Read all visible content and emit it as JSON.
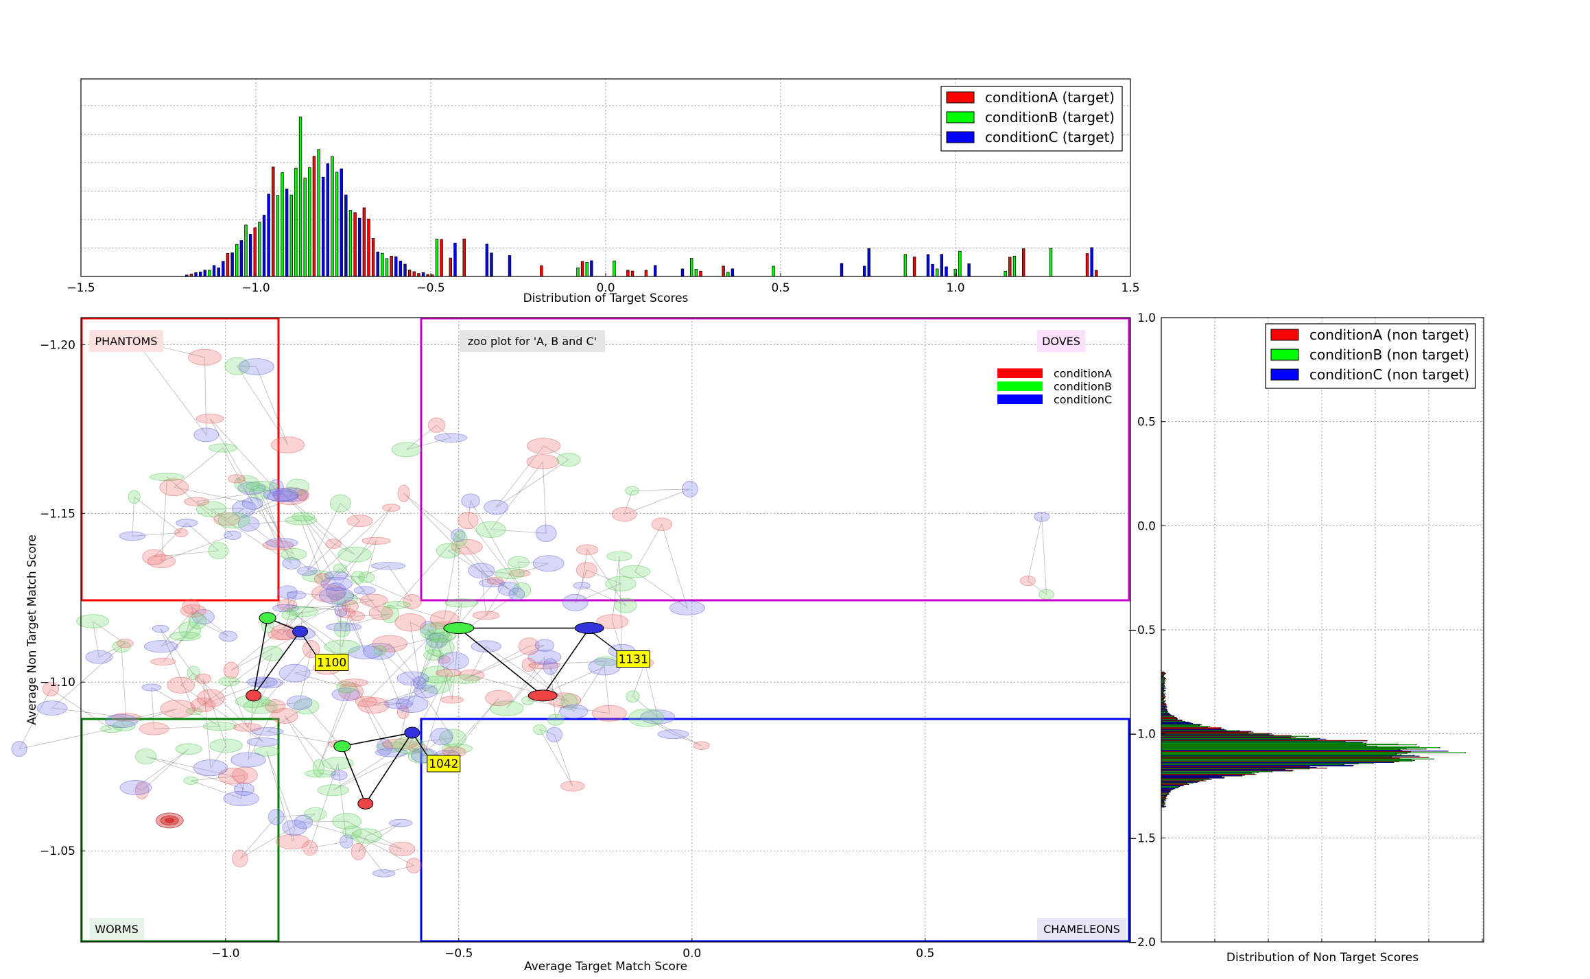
{
  "chart_data": [
    {
      "id": "top",
      "type": "bar",
      "xlabel": "Distribution of Target Scores",
      "xlim": [
        -1.5,
        1.5
      ],
      "x_ticks": [
        "−1.5",
        "−1.0",
        "−0.5",
        "0.0",
        "0.5",
        "1.0",
        "1.5"
      ],
      "grid": true,
      "legend_position": "top-right",
      "series": [
        {
          "name": "conditionA (target)",
          "color": "#ff0000"
        },
        {
          "name": "conditionB (target)",
          "color": "#00ff00"
        },
        {
          "name": "conditionC (target)",
          "color": "#0000ff"
        }
      ]
    },
    {
      "id": "zoo",
      "type": "scatter",
      "xlabel": "Average Target Match Score",
      "ylabel": "Average Non Target Match Score",
      "xlim": [
        -1.31,
        0.94
      ],
      "ylim": [
        -1.208,
        -1.023
      ],
      "y_inverted": true,
      "x_ticks": [
        "−1.0",
        "−0.5",
        "0.0",
        "0.5"
      ],
      "y_ticks": [
        "−1.20",
        "−1.15",
        "−1.10",
        "−1.05"
      ],
      "grid": true,
      "annotation": "zoo plot for 'A, B and C'",
      "regions": [
        {
          "label": "PHANTOMS",
          "color": "#ff0000",
          "bg": "#fde0e0"
        },
        {
          "label": "DOVES",
          "color": "#cc00cc",
          "bg": "#fbe0fb"
        },
        {
          "label": "WORMS",
          "color": "#008000",
          "bg": "#e6f2e6"
        },
        {
          "label": "CHAMELEONS",
          "color": "#0000ff",
          "bg": "#e6e6f7"
        }
      ],
      "region_bounds": {
        "x_low": -0.885,
        "x_high": -0.58,
        "y_low": -1.125,
        "y_high": -1.09
      },
      "legend": [
        {
          "name": "conditionA",
          "color": "#ff0000"
        },
        {
          "name": "conditionB",
          "color": "#00ff00"
        },
        {
          "name": "conditionC",
          "color": "#0000ff"
        }
      ],
      "highlighted": [
        {
          "label": "1100",
          "points": [
            {
              "series": "conditionA",
              "x": -0.94,
              "y": -1.096
            },
            {
              "series": "conditionB",
              "x": -0.91,
              "y": -1.119
            },
            {
              "series": "conditionC",
              "x": -0.84,
              "y": -1.115
            }
          ]
        },
        {
          "label": "1131",
          "points": [
            {
              "series": "conditionA",
              "x": -0.32,
              "y": -1.096
            },
            {
              "series": "conditionB",
              "x": -0.5,
              "y": -1.116
            },
            {
              "series": "conditionC",
              "x": -0.22,
              "y": -1.116
            }
          ]
        },
        {
          "label": "1042",
          "points": [
            {
              "series": "conditionA",
              "x": -0.7,
              "y": -1.064
            },
            {
              "series": "conditionB",
              "x": -0.75,
              "y": -1.081
            },
            {
              "series": "conditionC",
              "x": -0.6,
              "y": -1.085
            }
          ]
        }
      ],
      "outlier": {
        "series": "conditionA",
        "x": -1.12,
        "y": -1.059
      }
    },
    {
      "id": "right",
      "type": "bar",
      "orientation": "horizontal",
      "xlabel": "Distribution of Non Target Scores",
      "ylim": [
        -2.0,
        1.0
      ],
      "y_inverted": true,
      "y_ticks": [
        "1.0",
        "0.5",
        "0.0",
        "−0.5",
        "−1.0",
        "−1.5",
        "−2.0"
      ],
      "grid": true,
      "legend_position": "top-right",
      "series": [
        {
          "name": "conditionA (non target)",
          "color": "#ff0000"
        },
        {
          "name": "conditionB (non target)",
          "color": "#00ff00"
        },
        {
          "name": "conditionC (non target)",
          "color": "#0000ff"
        }
      ]
    }
  ]
}
